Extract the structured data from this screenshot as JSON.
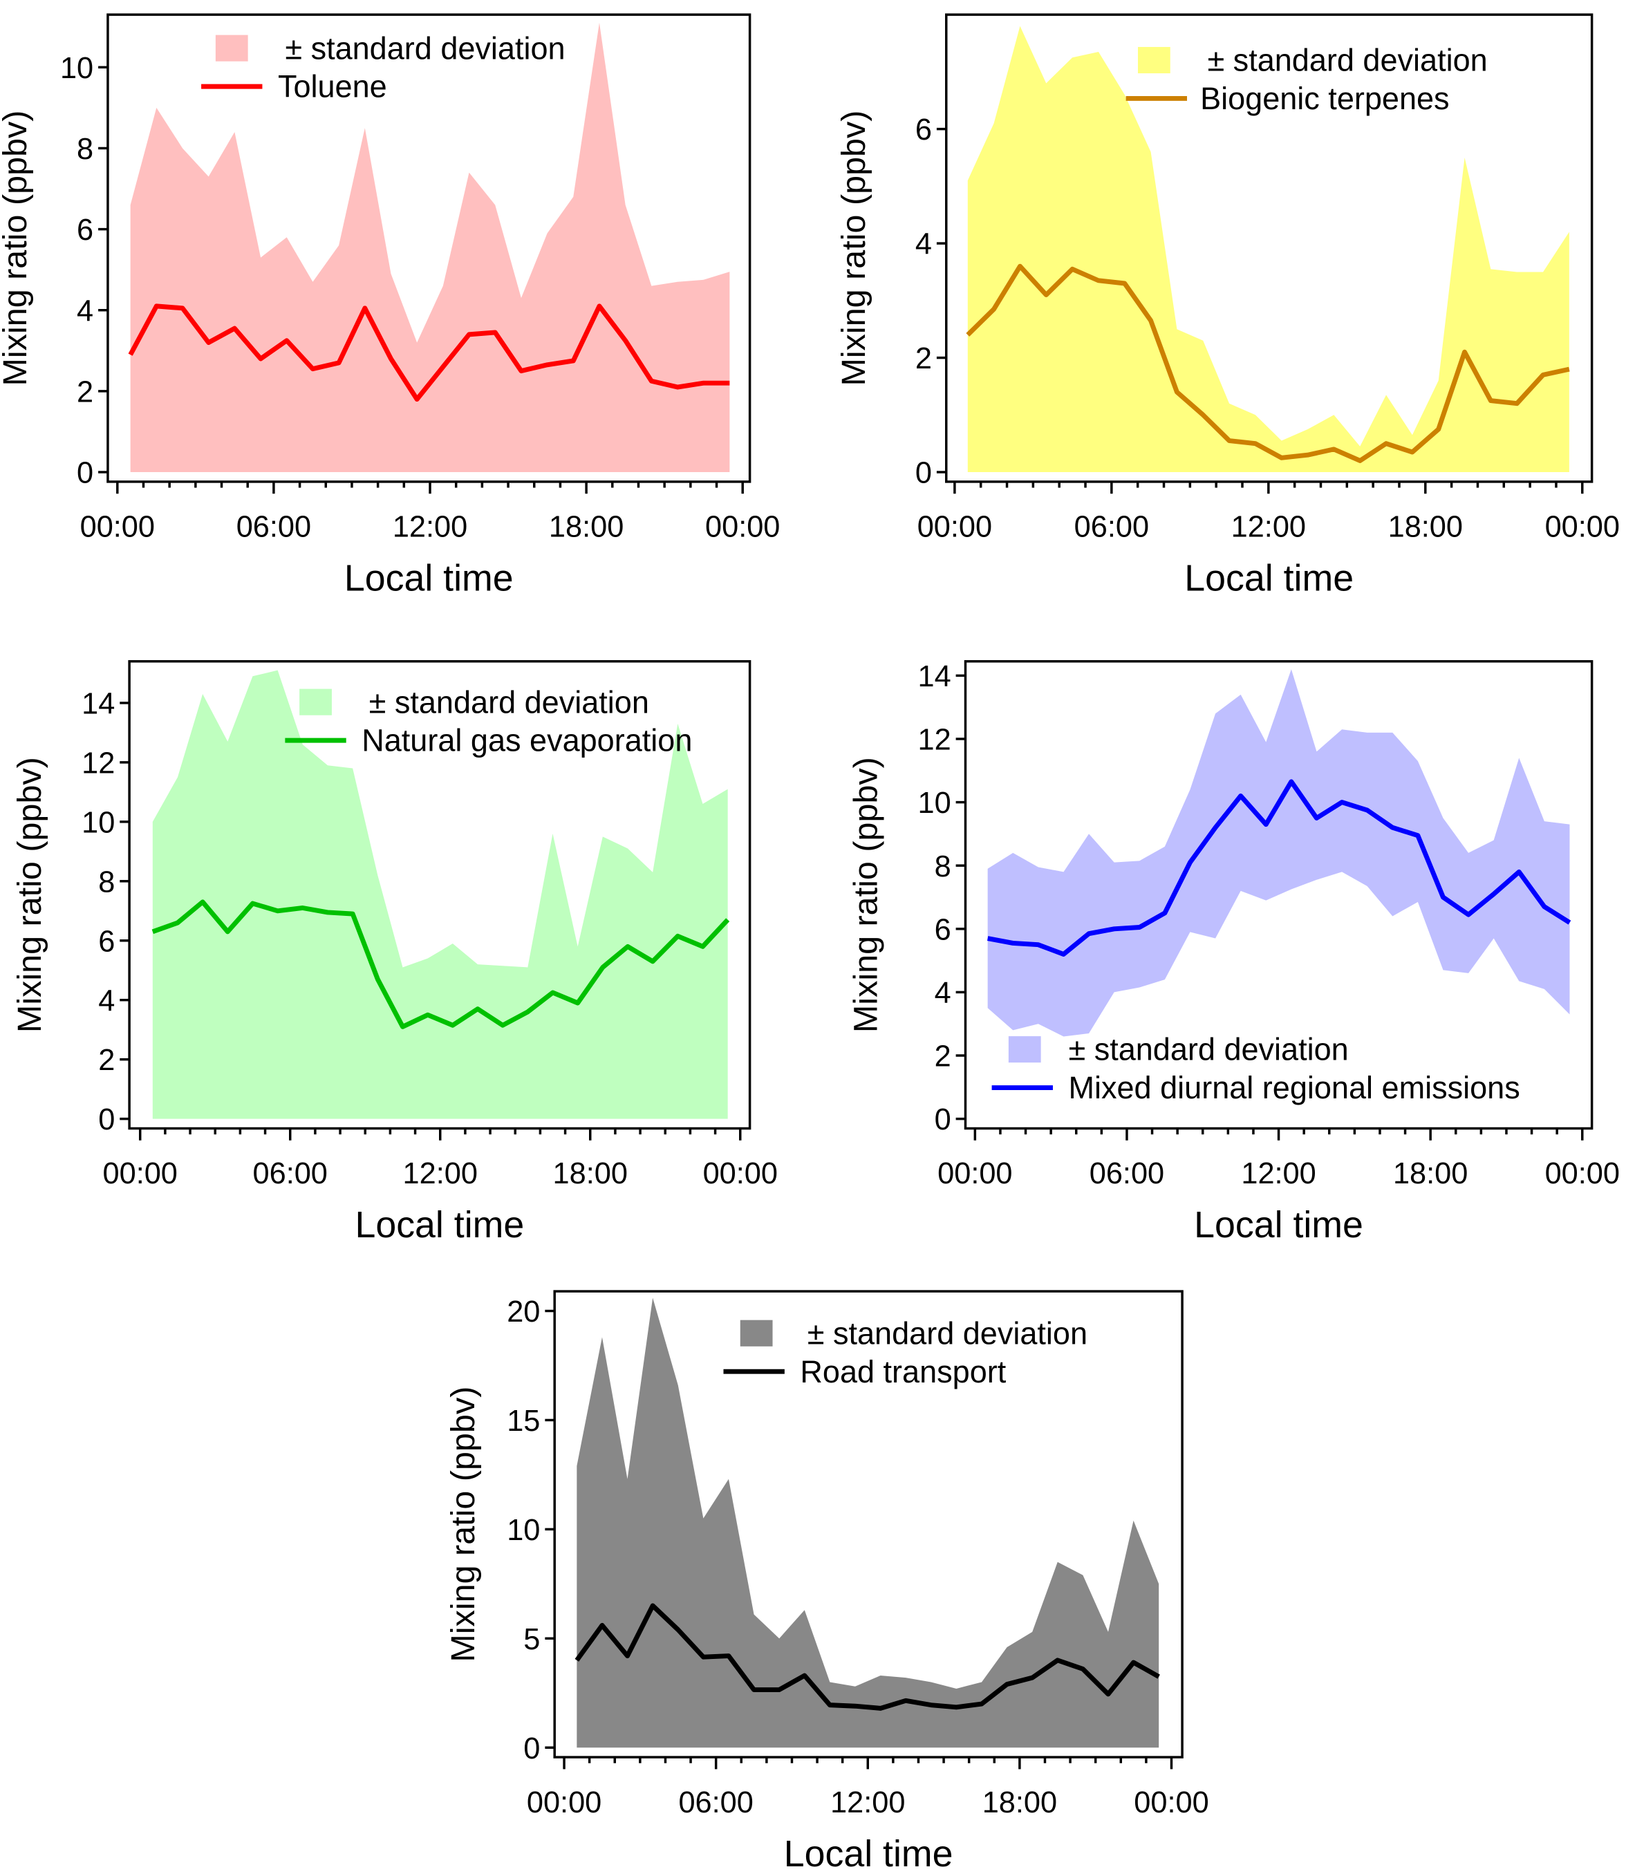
{
  "chart_data": [
    {
      "type": "area",
      "title": "",
      "xlabel": "Local time",
      "ylabel": "Mixing ratio (ppbv)",
      "x_hours": [
        0.5,
        1.5,
        2.5,
        3.5,
        4.5,
        5.5,
        6.5,
        7.5,
        8.5,
        9.5,
        10.5,
        11.5,
        12.5,
        13.5,
        14.5,
        15.5,
        16.5,
        17.5,
        18.5,
        19.5,
        20.5,
        21.5,
        22.5,
        23.5
      ],
      "xticks": [
        "00:00",
        "06:00",
        "12:00",
        "18:00",
        "00:00"
      ],
      "yticks": [
        0,
        2,
        4,
        6,
        8,
        10
      ],
      "ylim": [
        0,
        11.3
      ],
      "legend": {
        "band": "± standard deviation",
        "line": "Toluene",
        "placement": "top-left"
      },
      "colors": {
        "band": "#ffbfbf",
        "line": "#ff0000"
      },
      "mean": [
        2.9,
        4.1,
        4.05,
        3.2,
        3.55,
        2.8,
        3.25,
        2.55,
        2.7,
        4.05,
        2.8,
        1.8,
        2.6,
        3.4,
        3.45,
        2.5,
        2.65,
        2.75,
        4.1,
        3.25,
        2.25,
        2.1,
        2.2,
        2.2
      ],
      "upper": [
        6.6,
        9.0,
        8.0,
        7.3,
        8.4,
        5.3,
        5.8,
        4.7,
        5.6,
        8.5,
        4.9,
        3.2,
        4.6,
        7.4,
        6.6,
        4.3,
        5.9,
        6.8,
        11.1,
        6.6,
        4.6,
        4.7,
        4.75,
        4.95
      ],
      "lower": [
        0,
        0,
        0,
        0,
        0,
        0,
        0,
        0,
        0,
        0,
        0,
        0,
        0,
        0,
        0,
        0,
        0,
        0,
        0,
        0,
        0,
        0,
        0,
        0
      ]
    },
    {
      "type": "area",
      "xlabel": "Local time",
      "ylabel": "Mixing ratio (ppbv)",
      "x_hours": [
        0.5,
        1.5,
        2.5,
        3.5,
        4.5,
        5.5,
        6.5,
        7.5,
        8.5,
        9.5,
        10.5,
        11.5,
        12.5,
        13.5,
        14.5,
        15.5,
        16.5,
        17.5,
        18.5,
        19.5,
        20.5,
        21.5,
        22.5,
        23.5
      ],
      "xticks": [
        "00:00",
        "06:00",
        "12:00",
        "18:00",
        "00:00"
      ],
      "yticks": [
        0,
        2,
        4,
        6
      ],
      "ylim": [
        0,
        8.0
      ],
      "legend": {
        "band": "± standard deviation",
        "line": "Biogenic terpenes",
        "placement": "top-right"
      },
      "colors": {
        "band": "#ffff80",
        "line": "#cc8000"
      },
      "mean": [
        2.4,
        2.85,
        3.6,
        3.1,
        3.55,
        3.35,
        3.3,
        2.65,
        1.4,
        1.0,
        0.55,
        0.5,
        0.25,
        0.3,
        0.4,
        0.2,
        0.5,
        0.35,
        0.75,
        2.1,
        1.25,
        1.2,
        1.7,
        1.8
      ],
      "upper": [
        5.1,
        6.1,
        7.8,
        6.8,
        7.25,
        7.35,
        6.6,
        5.6,
        2.5,
        2.3,
        1.2,
        1.0,
        0.55,
        0.75,
        1.0,
        0.45,
        1.35,
        0.65,
        1.6,
        5.5,
        3.55,
        3.5,
        3.5,
        4.2
      ],
      "lower": [
        0,
        0,
        0,
        0,
        0,
        0,
        0,
        0,
        0,
        0,
        0,
        0,
        0,
        0,
        0,
        0,
        0,
        0,
        0,
        0,
        0,
        0,
        0,
        0
      ]
    },
    {
      "type": "area",
      "xlabel": "Local time",
      "ylabel": "Mixing ratio (ppbv)",
      "x_hours": [
        0.5,
        1.5,
        2.5,
        3.5,
        4.5,
        5.5,
        6.5,
        7.5,
        8.5,
        9.5,
        10.5,
        11.5,
        12.5,
        13.5,
        14.5,
        15.5,
        16.5,
        17.5,
        18.5,
        19.5,
        20.5,
        21.5,
        22.5,
        23.5
      ],
      "xticks": [
        "00:00",
        "06:00",
        "12:00",
        "18:00",
        "00:00"
      ],
      "yticks": [
        0,
        2,
        4,
        6,
        8,
        10,
        12,
        14
      ],
      "ylim": [
        0,
        15.4
      ],
      "legend": {
        "band": "± standard deviation",
        "line": "Natural gas evaporation",
        "placement": "top-right"
      },
      "colors": {
        "band": "#bfffbf",
        "line": "#00c000"
      },
      "mean": [
        6.3,
        6.6,
        7.3,
        6.3,
        7.25,
        7.0,
        7.1,
        6.95,
        6.9,
        4.7,
        3.1,
        3.5,
        3.15,
        3.7,
        3.15,
        3.6,
        4.25,
        3.9,
        5.1,
        5.8,
        5.3,
        6.15,
        5.8,
        6.7
      ],
      "upper": [
        10.0,
        11.5,
        14.3,
        12.7,
        14.9,
        15.1,
        12.6,
        11.9,
        11.8,
        8.2,
        5.1,
        5.4,
        5.9,
        5.2,
        5.15,
        5.1,
        9.6,
        5.8,
        9.5,
        9.1,
        8.3,
        13.3,
        10.6,
        11.1
      ],
      "lower": [
        0,
        0,
        0,
        0,
        0,
        0,
        0,
        0,
        0,
        0,
        0,
        0,
        0,
        0,
        0,
        0,
        0,
        0,
        0,
        0,
        0,
        0,
        0,
        0
      ]
    },
    {
      "type": "area",
      "xlabel": "Local time",
      "ylabel": "Mixing ratio (ppbv)",
      "x_hours": [
        0.5,
        1.5,
        2.5,
        3.5,
        4.5,
        5.5,
        6.5,
        7.5,
        8.5,
        9.5,
        10.5,
        11.5,
        12.5,
        13.5,
        14.5,
        15.5,
        16.5,
        17.5,
        18.5,
        19.5,
        20.5,
        21.5,
        22.5,
        23.5
      ],
      "xticks": [
        "00:00",
        "06:00",
        "12:00",
        "18:00",
        "00:00"
      ],
      "yticks": [
        0,
        2,
        4,
        6,
        8,
        10,
        12,
        14
      ],
      "ylim": [
        0,
        14.45
      ],
      "legend": {
        "band": "± standard deviation",
        "line": "Mixed diurnal regional emissions",
        "placement": "bottom-left"
      },
      "colors": {
        "band": "#bfbfff",
        "line": "#0000ff"
      },
      "mean": [
        5.7,
        5.55,
        5.5,
        5.2,
        5.85,
        6.0,
        6.05,
        6.5,
        8.1,
        9.2,
        10.2,
        9.3,
        10.65,
        9.5,
        10.0,
        9.75,
        9.2,
        8.95,
        7.0,
        6.45,
        7.1,
        7.8,
        6.7,
        6.2
      ],
      "upper": [
        7.9,
        8.4,
        7.95,
        7.8,
        9.0,
        8.1,
        8.15,
        8.6,
        10.4,
        12.8,
        13.4,
        11.9,
        14.2,
        11.6,
        12.3,
        12.2,
        12.2,
        11.3,
        9.5,
        8.4,
        8.8,
        11.4,
        9.4,
        9.3
      ],
      "lower": [
        3.5,
        2.8,
        3.0,
        2.6,
        2.7,
        4.0,
        4.15,
        4.4,
        5.9,
        5.7,
        7.2,
        6.9,
        7.25,
        7.55,
        7.8,
        7.35,
        6.4,
        6.85,
        4.7,
        4.6,
        5.7,
        4.35,
        4.1,
        3.3
      ]
    },
    {
      "type": "area",
      "xlabel": "Local time",
      "ylabel": "Mixing ratio (ppbv)",
      "x_hours": [
        0.5,
        1.5,
        2.5,
        3.5,
        4.5,
        5.5,
        6.5,
        7.5,
        8.5,
        9.5,
        10.5,
        11.5,
        12.5,
        13.5,
        14.5,
        15.5,
        16.5,
        17.5,
        18.5,
        19.5,
        20.5,
        21.5,
        22.5,
        23.5
      ],
      "xticks": [
        "00:00",
        "06:00",
        "12:00",
        "18:00",
        "00:00"
      ],
      "yticks": [
        0,
        5,
        10,
        15,
        20
      ],
      "ylim": [
        0,
        20.9
      ],
      "legend": {
        "band": "± standard deviation",
        "line": "Road transport",
        "placement": "top-right"
      },
      "colors": {
        "band": "#888888",
        "line": "#000000"
      },
      "mean": [
        4.0,
        5.6,
        4.2,
        6.5,
        5.4,
        4.15,
        4.2,
        2.65,
        2.65,
        3.3,
        1.95,
        1.9,
        1.8,
        2.15,
        1.95,
        1.85,
        2.0,
        2.9,
        3.2,
        4.0,
        3.6,
        2.45,
        3.9,
        3.25
      ],
      "upper": [
        12.9,
        18.8,
        12.3,
        20.6,
        16.6,
        10.5,
        12.3,
        6.1,
        5.0,
        6.3,
        3.0,
        2.8,
        3.3,
        3.2,
        3.0,
        2.7,
        3.0,
        4.6,
        5.3,
        8.5,
        7.9,
        5.3,
        10.4,
        7.5
      ],
      "lower": [
        0,
        0,
        0,
        0,
        0,
        0,
        0,
        0,
        0,
        0,
        0,
        0,
        0,
        0,
        0,
        0,
        0,
        0,
        0,
        0,
        0,
        0,
        0,
        0
      ]
    }
  ]
}
